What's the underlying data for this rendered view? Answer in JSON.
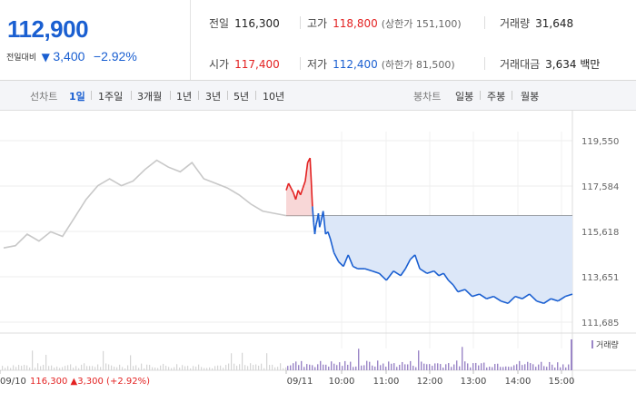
{
  "quote": {
    "price": "112,900",
    "change_label": "전일대비",
    "change_arrow": "▼",
    "change_amount": "3,400",
    "change_percent": "−2.92%"
  },
  "stats": {
    "prev_close": {
      "label": "전일",
      "value": "116,300"
    },
    "high": {
      "label": "고가",
      "value": "118,800",
      "sub": "(상한가 151,100)"
    },
    "volume": {
      "label": "거래량",
      "value": "31,648"
    },
    "open": {
      "label": "시가",
      "value": "117,400"
    },
    "low": {
      "label": "저가",
      "value": "112,400",
      "sub": "(하한가 81,500)"
    },
    "trade_value": {
      "label": "거래대금",
      "value": "3,634 백만"
    }
  },
  "period_bar": {
    "line_chart_title": "선차트",
    "line_periods": [
      "1일",
      "1주일",
      "3개월",
      "1년",
      "3년",
      "5년",
      "10년"
    ],
    "active_period": "1일",
    "candle_chart_title": "봉차트",
    "candle_periods": [
      "일봉",
      "주봉",
      "월봉"
    ]
  },
  "chart_data": {
    "type": "line",
    "y_ticks": [
      "119,550",
      "117,584",
      "115,618",
      "113,651",
      "111,685"
    ],
    "ylim": [
      111685,
      119550
    ],
    "x_ticks": [
      "09/10",
      "09/11",
      "10:00",
      "11:00",
      "12:00",
      "13:00",
      "14:00",
      "15:00"
    ],
    "reference_price": 116300,
    "volume_legend": "거래량",
    "prev_day_footer": {
      "price": "116,300",
      "arrow": "▲",
      "change": "3,300",
      "percent": "(+2.92%)"
    },
    "series": [
      {
        "values": [
          [
            0,
            114900
          ],
          [
            1,
            115000
          ],
          [
            2,
            115500
          ],
          [
            3,
            115200
          ],
          [
            4,
            115600
          ],
          [
            5,
            115400
          ],
          [
            6,
            116200
          ],
          [
            7,
            117000
          ],
          [
            8,
            117600
          ],
          [
            9,
            117900
          ],
          [
            10,
            117600
          ],
          [
            11,
            117800
          ],
          [
            12,
            118300
          ],
          [
            13,
            118700
          ],
          [
            14,
            118400
          ],
          [
            15,
            118200
          ],
          [
            16,
            118600
          ],
          [
            17,
            117900
          ],
          [
            18,
            117700
          ],
          [
            19,
            117500
          ],
          [
            20,
            117200
          ],
          [
            21,
            116800
          ],
          [
            22,
            116500
          ],
          [
            23,
            116400
          ],
          [
            24,
            116300
          ]
        ],
        "color": "#c8c8c8"
      },
      {
        "values": [
          [
            0,
            117400
          ],
          [
            0.1,
            117700
          ],
          [
            0.2,
            117500
          ],
          [
            0.3,
            117300
          ],
          [
            0.4,
            117000
          ],
          [
            0.5,
            117400
          ],
          [
            0.6,
            117200
          ],
          [
            0.7,
            117500
          ],
          [
            0.8,
            117800
          ],
          [
            0.9,
            118600
          ],
          [
            1.0,
            118800
          ],
          [
            1.05,
            117800
          ],
          [
            1.1,
            116700
          ],
          [
            1.15,
            116000
          ],
          [
            1.2,
            115500
          ],
          [
            1.25,
            115900
          ],
          [
            1.3,
            116100
          ],
          [
            1.35,
            116400
          ],
          [
            1.4,
            115800
          ],
          [
            1.45,
            116000
          ],
          [
            1.55,
            116500
          ],
          [
            1.65,
            115500
          ],
          [
            1.75,
            115600
          ],
          [
            1.85,
            115300
          ],
          [
            2.0,
            114700
          ],
          [
            2.2,
            114300
          ],
          [
            2.4,
            114100
          ],
          [
            2.6,
            114600
          ],
          [
            2.8,
            114100
          ],
          [
            3.0,
            114000
          ],
          [
            3.3,
            114000
          ],
          [
            3.6,
            113900
          ],
          [
            3.9,
            113800
          ],
          [
            4.2,
            113500
          ],
          [
            4.5,
            113900
          ],
          [
            4.8,
            113700
          ],
          [
            5.0,
            114000
          ],
          [
            5.2,
            114400
          ],
          [
            5.4,
            114600
          ],
          [
            5.6,
            114000
          ],
          [
            5.9,
            113800
          ],
          [
            6.2,
            113900
          ],
          [
            6.4,
            113700
          ],
          [
            6.6,
            113800
          ],
          [
            6.8,
            113500
          ],
          [
            7.0,
            113300
          ],
          [
            7.2,
            113000
          ],
          [
            7.5,
            113100
          ],
          [
            7.8,
            112800
          ],
          [
            8.1,
            112900
          ],
          [
            8.4,
            112700
          ],
          [
            8.7,
            112800
          ],
          [
            9.0,
            112600
          ],
          [
            9.3,
            112500
          ],
          [
            9.6,
            112800
          ],
          [
            9.9,
            112700
          ],
          [
            10.2,
            112900
          ],
          [
            10.5,
            112600
          ],
          [
            10.8,
            112500
          ],
          [
            11.1,
            112700
          ],
          [
            11.4,
            112600
          ],
          [
            11.7,
            112800
          ],
          [
            12.0,
            112900
          ]
        ],
        "color": "#1a5fd1"
      }
    ]
  },
  "colors": {
    "up": "#e32222",
    "down": "#1a5fd1",
    "prev_day_line": "#c8c8c8",
    "down_fill": "#dce7f8",
    "up_fill": "#f8d7d7",
    "volume_bar": "#9b86c7"
  }
}
